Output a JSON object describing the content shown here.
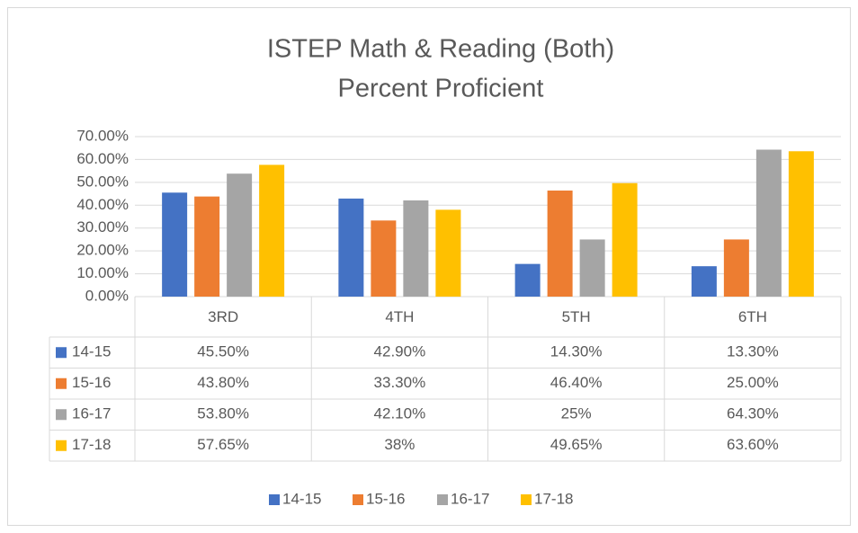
{
  "chart_data": {
    "type": "bar",
    "title": "ISTEP Math & Reading (Both)",
    "subtitle": "Percent Proficient",
    "categories": [
      "3RD",
      "4TH",
      "5TH",
      "6TH"
    ],
    "series": [
      {
        "name": "14-15",
        "color": "#4472c4",
        "values": [
          45.5,
          42.9,
          14.3,
          13.3
        ],
        "value_labels": [
          "45.50%",
          "42.90%",
          "14.30%",
          "13.30%"
        ]
      },
      {
        "name": "15-16",
        "color": "#ed7d31",
        "values": [
          43.8,
          33.3,
          46.4,
          25.0
        ],
        "value_labels": [
          "43.80%",
          "33.30%",
          "46.40%",
          "25.00%"
        ]
      },
      {
        "name": "16-17",
        "color": "#a5a5a5",
        "values": [
          53.8,
          42.1,
          25,
          64.3
        ],
        "value_labels": [
          "53.80%",
          "42.10%",
          "25%",
          "64.30%"
        ]
      },
      {
        "name": "17-18",
        "color": "#ffc000",
        "values": [
          57.65,
          38,
          49.65,
          63.6
        ],
        "value_labels": [
          "57.65%",
          "38%",
          "49.65%",
          "63.60%"
        ]
      }
    ],
    "ylim": [
      0,
      70
    ],
    "yticks": [
      {
        "value": 0,
        "label": "0.00%"
      },
      {
        "value": 10,
        "label": "10.00%"
      },
      {
        "value": 20,
        "label": "20.00%"
      },
      {
        "value": 30,
        "label": "30.00%"
      },
      {
        "value": 40,
        "label": "40.00%"
      },
      {
        "value": 50,
        "label": "50.00%"
      },
      {
        "value": 60,
        "label": "60.00%"
      },
      {
        "value": 70,
        "label": "70.00%"
      }
    ],
    "grid": true,
    "legend": "bottom",
    "data_table": true
  }
}
